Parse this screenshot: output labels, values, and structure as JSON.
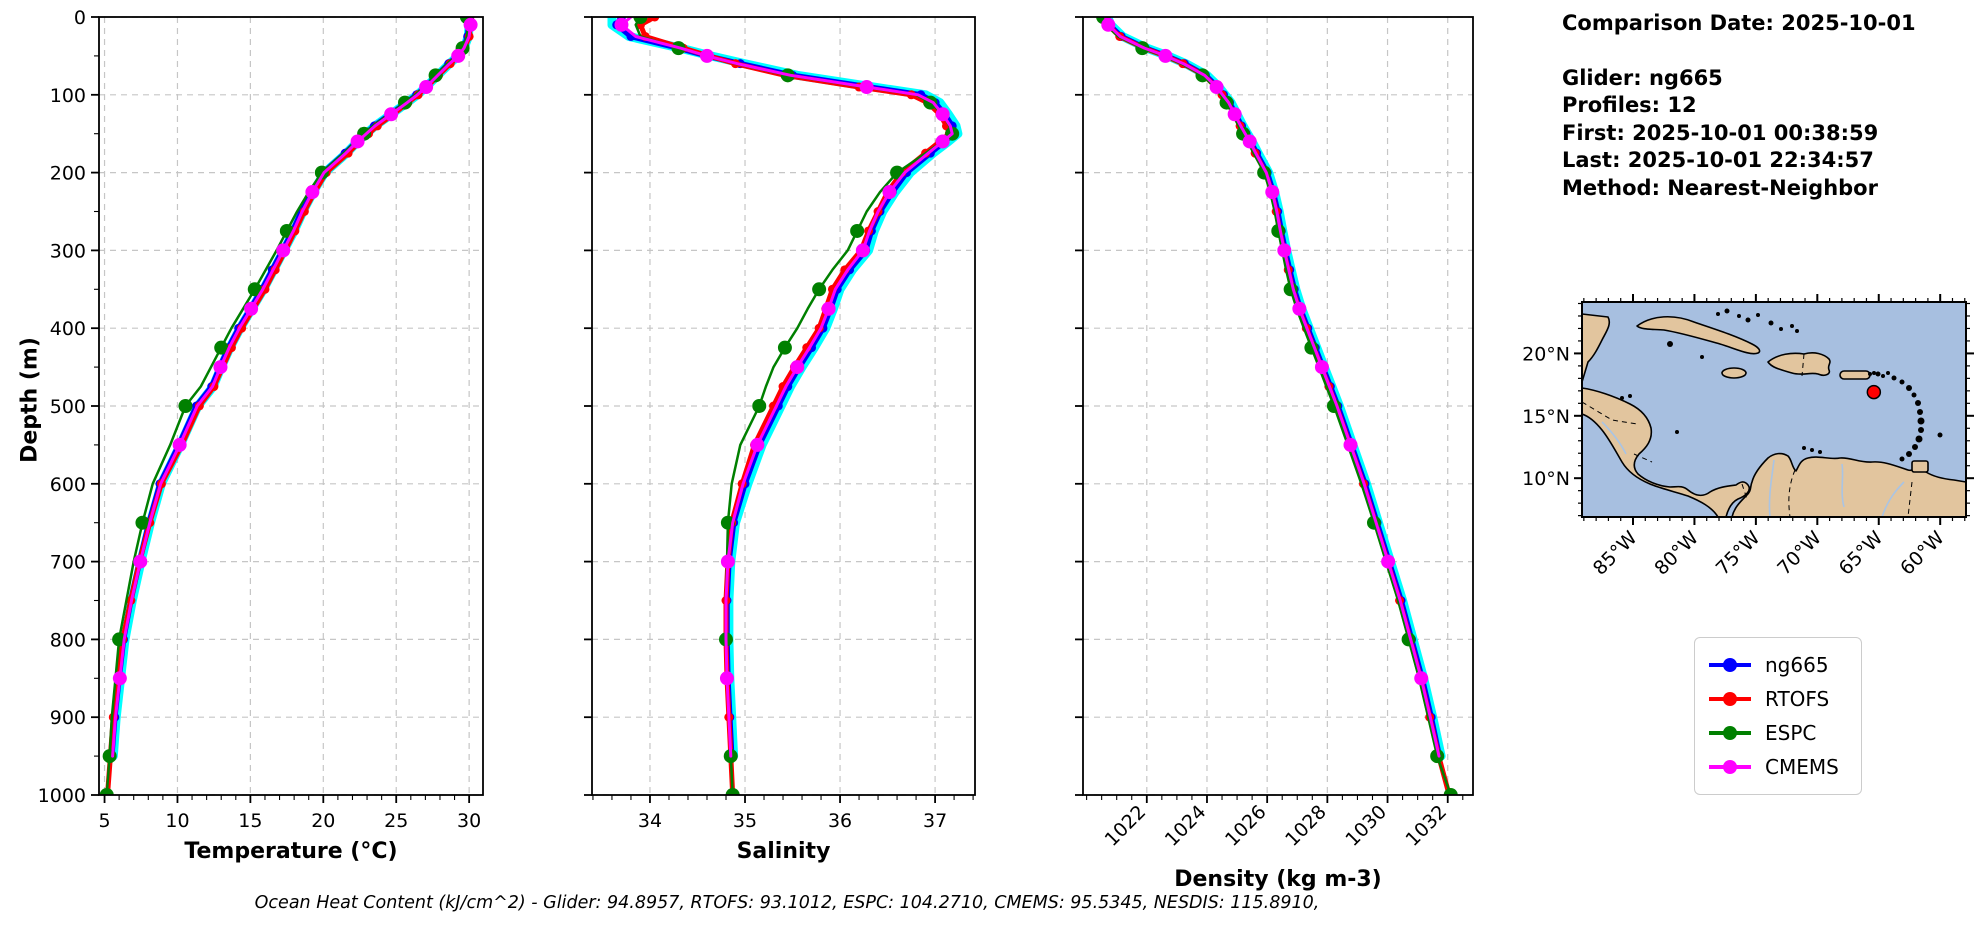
{
  "info_panel": {
    "title": "Comparison Date: 2025-10-01",
    "lines": [
      "Glider: ng665",
      "Profiles: 12",
      "First: 2025-10-01 00:38:59",
      "Last: 2025-10-01 22:34:57",
      "Method: Nearest-Neighbor"
    ]
  },
  "ylabel": "Depth (m)",
  "caption": "Ocean Heat Content (kJ/cm^2) - Glider: 94.8957,  RTOFS: 93.1012,  ESPC: 104.2710,  CMEMS: 95.5345,  NESDIS: 115.8910,",
  "ocean_heat_content": {
    "unit": "kJ/cm^2",
    "glider": 94.8957,
    "rtofs": 93.1012,
    "espc": 104.271,
    "cmems": 95.5345,
    "nesdis": 115.891
  },
  "legend": {
    "entries": [
      {
        "label": "ng665",
        "color": "#0000ff"
      },
      {
        "label": "RTOFS",
        "color": "#ff0000"
      },
      {
        "label": "ESPC",
        "color": "#008000"
      },
      {
        "label": "CMEMS",
        "color": "#ff00ff"
      }
    ]
  },
  "map": {
    "lon_tick_labels": [
      "85°W",
      "80°W",
      "75°W",
      "70°W",
      "65°W",
      "60°W"
    ],
    "lon_ticks": [
      -85,
      -80,
      -75,
      -70,
      -65,
      -60
    ],
    "lat_tick_labels": [
      "20°N",
      "15°N",
      "10°N"
    ],
    "lat_ticks": [
      20,
      15,
      10
    ],
    "extent": {
      "lon_min": -89.15,
      "lon_max": -57.9,
      "lat_min": 6.89,
      "lat_max": 24.12
    },
    "water_color": "#a7bfe0",
    "land_color": "#e2c59e",
    "marker": {
      "lon": -65.4,
      "lat": 16.9,
      "color": "#ff0000"
    }
  },
  "chart_data": [
    {
      "type": "line",
      "xlabel": "Temperature (°C)",
      "x_ticks": [
        5,
        10,
        15,
        20,
        25,
        30
      ],
      "xlim": [
        4.62,
        30.95
      ],
      "ylabel": "Depth (m)",
      "y_ticks": [
        0,
        100,
        200,
        300,
        400,
        500,
        600,
        700,
        800,
        900,
        1000
      ],
      "ylim": [
        0,
        1000
      ],
      "depths": [
        0,
        10,
        25,
        40,
        50,
        60,
        75,
        90,
        100,
        110,
        125,
        140,
        150,
        160,
        175,
        200,
        225,
        250,
        275,
        300,
        325,
        350,
        375,
        400,
        425,
        450,
        475,
        500,
        550,
        600,
        650,
        700,
        750,
        800,
        850,
        900,
        950,
        1000
      ],
      "series": [
        {
          "name": "ng665-profiles",
          "color": "#00ffff",
          "values": [
            29.9,
            30.0,
            29.95,
            29.65,
            29.25,
            28.65,
            27.85,
            27.05,
            26.45,
            25.75,
            24.65,
            23.55,
            22.95,
            22.35,
            21.6,
            20.1,
            19.3,
            18.6,
            18.0,
            17.3,
            16.6,
            15.9,
            15.1,
            14.3,
            13.6,
            13.0,
            12.45,
            11.4,
            10.2,
            8.9,
            8.15,
            7.5,
            6.9,
            6.4,
            6.1,
            5.8,
            5.6,
            null
          ]
        },
        {
          "name": "ng665",
          "color": "#0000ff",
          "values": [
            29.9,
            29.95,
            29.9,
            29.6,
            29.2,
            28.6,
            27.8,
            27.0,
            26.4,
            25.7,
            24.6,
            23.5,
            22.9,
            22.3,
            21.5,
            20.0,
            19.2,
            18.5,
            17.9,
            17.2,
            16.5,
            15.8,
            15.0,
            14.2,
            13.5,
            12.9,
            12.35,
            11.3,
            10.1,
            8.8,
            8.05,
            7.4,
            6.8,
            6.3,
            6.0,
            5.7,
            5.5,
            null
          ]
        },
        {
          "name": "RTOFS",
          "color": "#ff0000",
          "values": [
            30.05,
            30.1,
            30.0,
            29.7,
            29.3,
            28.7,
            27.9,
            27.1,
            26.5,
            25.8,
            24.8,
            23.7,
            23.1,
            22.5,
            21.7,
            20.2,
            19.4,
            18.7,
            18.05,
            17.4,
            16.7,
            16.0,
            15.2,
            14.4,
            13.7,
            13.1,
            12.5,
            11.5,
            10.3,
            8.9,
            8.1,
            7.4,
            6.8,
            6.25,
            5.9,
            5.6,
            5.4,
            5.2
          ]
        },
        {
          "name": "ESPC",
          "color": "#008000",
          "values": [
            29.85,
            29.9,
            29.85,
            29.55,
            29.1,
            28.5,
            27.7,
            26.9,
            26.3,
            25.6,
            24.5,
            23.4,
            22.8,
            22.2,
            21.4,
            19.9,
            19.0,
            18.2,
            17.5,
            16.8,
            16.05,
            15.3,
            14.5,
            13.7,
            13.0,
            12.3,
            11.6,
            10.55,
            9.5,
            8.3,
            7.6,
            7.0,
            6.5,
            6.0,
            5.75,
            5.5,
            5.35,
            5.15
          ]
        },
        {
          "name": "CMEMS",
          "color": "#ff00ff",
          "values": [
            30.1,
            30.1,
            30.0,
            29.65,
            29.25,
            28.65,
            27.85,
            27.05,
            26.45,
            25.75,
            24.65,
            23.55,
            22.95,
            22.35,
            21.55,
            20.05,
            19.25,
            18.55,
            17.95,
            17.25,
            16.55,
            15.85,
            15.05,
            14.25,
            13.55,
            12.95,
            12.4,
            11.35,
            10.15,
            8.85,
            8.1,
            7.45,
            6.85,
            6.35,
            6.05,
            5.75,
            5.55,
            null
          ]
        }
      ]
    },
    {
      "type": "line",
      "xlabel": "Salinity",
      "x_ticks": [
        34,
        35,
        36,
        37
      ],
      "xlim": [
        33.39,
        37.42
      ],
      "ylabel": "Depth (m)",
      "y_ticks": [
        0,
        100,
        200,
        300,
        400,
        500,
        600,
        700,
        800,
        900,
        1000
      ],
      "ylim": [
        0,
        1000
      ],
      "depths": [
        0,
        10,
        25,
        40,
        50,
        60,
        75,
        90,
        100,
        110,
        125,
        140,
        150,
        160,
        175,
        200,
        225,
        250,
        275,
        300,
        325,
        350,
        375,
        400,
        425,
        450,
        475,
        500,
        550,
        600,
        650,
        700,
        750,
        800,
        850,
        900,
        950,
        1000
      ],
      "series": [
        {
          "name": "ng665-profiles",
          "color": "#00ffff",
          "values": [
            33.6,
            33.6,
            33.78,
            34.32,
            34.64,
            35.0,
            35.55,
            36.35,
            36.9,
            37.05,
            37.14,
            37.22,
            37.24,
            37.14,
            36.98,
            36.74,
            36.58,
            36.45,
            36.36,
            36.3,
            36.13,
            36.0,
            35.93,
            35.85,
            35.73,
            35.6,
            35.48,
            35.38,
            35.18,
            35.03,
            34.9,
            34.85,
            34.83,
            34.83,
            34.84,
            34.86,
            34.88,
            null
          ]
        },
        {
          "name": "ng665",
          "color": "#0000ff",
          "values": [
            33.7,
            33.65,
            33.8,
            34.3,
            34.6,
            34.95,
            35.5,
            36.3,
            36.85,
            37.0,
            37.1,
            37.18,
            37.2,
            37.1,
            36.95,
            36.7,
            36.55,
            36.42,
            36.33,
            36.27,
            36.1,
            35.97,
            35.9,
            35.82,
            35.7,
            35.57,
            35.45,
            35.35,
            35.15,
            35.0,
            34.88,
            34.83,
            34.81,
            34.81,
            34.82,
            34.84,
            34.86,
            null
          ]
        },
        {
          "name": "RTOFS",
          "color": "#ff0000",
          "values": [
            34.05,
            33.9,
            33.95,
            34.35,
            34.62,
            34.9,
            35.42,
            36.2,
            36.75,
            36.92,
            37.05,
            37.12,
            37.15,
            37.05,
            36.9,
            36.65,
            36.5,
            36.4,
            36.3,
            36.22,
            36.05,
            35.92,
            35.85,
            35.78,
            35.65,
            35.52,
            35.4,
            35.3,
            35.1,
            34.97,
            34.86,
            34.82,
            34.8,
            34.8,
            34.81,
            34.83,
            34.85,
            34.87
          ]
        },
        {
          "name": "ESPC",
          "color": "#008000",
          "values": [
            33.9,
            33.85,
            33.9,
            34.3,
            34.6,
            34.9,
            35.45,
            36.25,
            36.8,
            36.95,
            37.08,
            37.15,
            37.18,
            37.08,
            36.9,
            36.6,
            36.42,
            36.28,
            36.18,
            36.08,
            35.92,
            35.78,
            35.66,
            35.55,
            35.42,
            35.3,
            35.22,
            35.15,
            34.95,
            34.86,
            34.82,
            34.81,
            34.8,
            34.8,
            34.81,
            34.83,
            34.85,
            34.87
          ]
        },
        {
          "name": "CMEMS",
          "color": "#ff00ff",
          "values": [
            33.8,
            33.7,
            33.85,
            34.32,
            34.6,
            34.92,
            35.48,
            36.28,
            36.82,
            36.98,
            37.08,
            37.16,
            37.18,
            37.08,
            36.93,
            36.68,
            36.52,
            36.4,
            36.31,
            36.24,
            36.08,
            35.95,
            35.88,
            35.8,
            35.68,
            35.55,
            35.43,
            35.33,
            35.13,
            34.98,
            34.87,
            34.82,
            34.8,
            34.8,
            34.81,
            34.83,
            34.85,
            null
          ]
        }
      ]
    },
    {
      "type": "line",
      "xlabel": "Density (kg m-3)",
      "x_ticks": [
        1022,
        1024,
        1026,
        1028,
        1030,
        1032
      ],
      "xlim": [
        1019.88,
        1032.84
      ],
      "ylabel": "Depth (m)",
      "y_ticks": [
        0,
        100,
        200,
        300,
        400,
        500,
        600,
        700,
        800,
        900,
        1000
      ],
      "ylim": [
        0,
        1000
      ],
      "depths": [
        0,
        10,
        25,
        40,
        50,
        60,
        75,
        90,
        100,
        110,
        125,
        140,
        150,
        160,
        175,
        200,
        225,
        250,
        275,
        300,
        325,
        350,
        375,
        400,
        425,
        450,
        475,
        500,
        550,
        600,
        650,
        700,
        750,
        800,
        850,
        900,
        950,
        1000
      ],
      "series": [
        {
          "name": "ng665-profiles",
          "color": "#00ffff",
          "values": [
            1020.7,
            1020.8,
            1021.2,
            1022.0,
            1022.7,
            1023.3,
            1024.0,
            1024.4,
            1024.6,
            1024.8,
            1025.0,
            1025.2,
            1025.35,
            1025.5,
            1025.7,
            1026.05,
            1026.25,
            1026.4,
            1026.52,
            1026.65,
            1026.8,
            1026.95,
            1027.15,
            1027.4,
            1027.65,
            1027.9,
            1028.15,
            1028.4,
            1028.85,
            1029.3,
            1029.7,
            1030.1,
            1030.5,
            1030.85,
            1031.2,
            1031.5,
            1031.78,
            null
          ]
        },
        {
          "name": "ng665",
          "color": "#0000ff",
          "values": [
            1020.65,
            1020.75,
            1021.15,
            1021.95,
            1022.65,
            1023.25,
            1023.95,
            1024.35,
            1024.55,
            1024.75,
            1024.95,
            1025.15,
            1025.3,
            1025.45,
            1025.65,
            1026.0,
            1026.2,
            1026.35,
            1026.47,
            1026.6,
            1026.75,
            1026.9,
            1027.1,
            1027.35,
            1027.6,
            1027.85,
            1028.1,
            1028.35,
            1028.8,
            1029.25,
            1029.65,
            1030.05,
            1030.45,
            1030.8,
            1031.15,
            1031.45,
            1031.72,
            null
          ]
        },
        {
          "name": "RTOFS",
          "color": "#ff0000",
          "values": [
            1020.6,
            1020.7,
            1021.1,
            1021.9,
            1022.6,
            1023.2,
            1023.9,
            1024.3,
            1024.5,
            1024.7,
            1024.9,
            1025.1,
            1025.25,
            1025.4,
            1025.6,
            1025.95,
            1026.15,
            1026.3,
            1026.42,
            1026.55,
            1026.7,
            1026.85,
            1027.05,
            1027.3,
            1027.55,
            1027.8,
            1028.05,
            1028.3,
            1028.75,
            1029.2,
            1029.6,
            1030.0,
            1030.4,
            1030.75,
            1031.1,
            1031.4,
            1031.7,
            1032.05
          ]
        },
        {
          "name": "ESPC",
          "color": "#008000",
          "values": [
            1020.55,
            1020.65,
            1021.05,
            1021.85,
            1022.55,
            1023.15,
            1023.85,
            1024.25,
            1024.45,
            1024.65,
            1024.85,
            1025.05,
            1025.2,
            1025.35,
            1025.55,
            1025.9,
            1026.1,
            1026.25,
            1026.37,
            1026.5,
            1026.63,
            1026.78,
            1026.98,
            1027.22,
            1027.47,
            1027.72,
            1027.97,
            1028.22,
            1028.68,
            1029.13,
            1029.55,
            1029.95,
            1030.35,
            1030.7,
            1031.05,
            1031.35,
            1031.65,
            1032.1
          ]
        },
        {
          "name": "CMEMS",
          "color": "#ff00ff",
          "values": [
            1020.62,
            1020.72,
            1021.12,
            1021.92,
            1022.62,
            1023.22,
            1023.92,
            1024.32,
            1024.52,
            1024.72,
            1024.92,
            1025.12,
            1025.27,
            1025.42,
            1025.62,
            1025.97,
            1026.17,
            1026.32,
            1026.44,
            1026.57,
            1026.72,
            1026.87,
            1027.07,
            1027.32,
            1027.57,
            1027.82,
            1028.07,
            1028.32,
            1028.77,
            1029.22,
            1029.62,
            1030.02,
            1030.42,
            1030.77,
            1031.12,
            1031.42,
            1031.71,
            null
          ]
        }
      ]
    }
  ]
}
